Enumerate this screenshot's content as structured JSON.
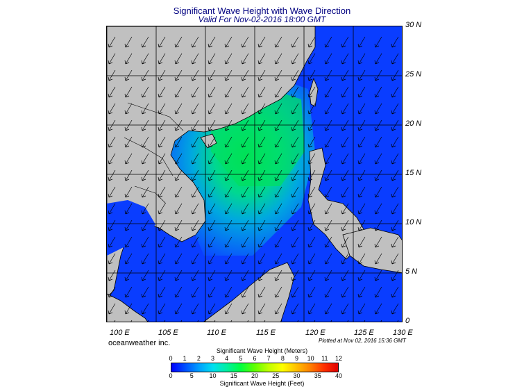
{
  "header": {
    "title": "Significant Wave Height with Wave Direction",
    "subtitle": "Valid For Nov-02-2016 18:00 GMT"
  },
  "map": {
    "lat_labels": [
      "30 N",
      "25 N",
      "20 N",
      "15 N",
      "10 N",
      "5 N",
      "0"
    ],
    "lon_labels": [
      "100 E",
      "105 E",
      "110 E",
      "115 E",
      "120 E",
      "125 E",
      "130 E"
    ],
    "colors": {
      "land": "#c0c0c0",
      "deep_blue": "#0a3dff",
      "green": "#00e65a",
      "border": "#000000"
    },
    "dominant_direction": "from northeast to southwest"
  },
  "footer": {
    "brand": "oceanweather inc.",
    "plotted": "Plotted at Nov 02, 2016 15:36 GMT"
  },
  "colorbar": {
    "title_top": "Significant Wave Height (Meters)",
    "title_bottom": "Significant Wave Height (Feet)",
    "meter_ticks": [
      "0",
      "1",
      "2",
      "3",
      "4",
      "5",
      "6",
      "7",
      "8",
      "9",
      "10",
      "11",
      "12"
    ],
    "feet_ticks": [
      "0",
      "5",
      "10",
      "15",
      "20",
      "25",
      "30",
      "35",
      "40"
    ],
    "colors": [
      "#0000ff",
      "#0050ff",
      "#00a0ff",
      "#00e0f0",
      "#00f0a0",
      "#00ff40",
      "#60ff00",
      "#c0ff00",
      "#ffff00",
      "#ffc000",
      "#ff8000",
      "#ff3000",
      "#e00000"
    ]
  }
}
